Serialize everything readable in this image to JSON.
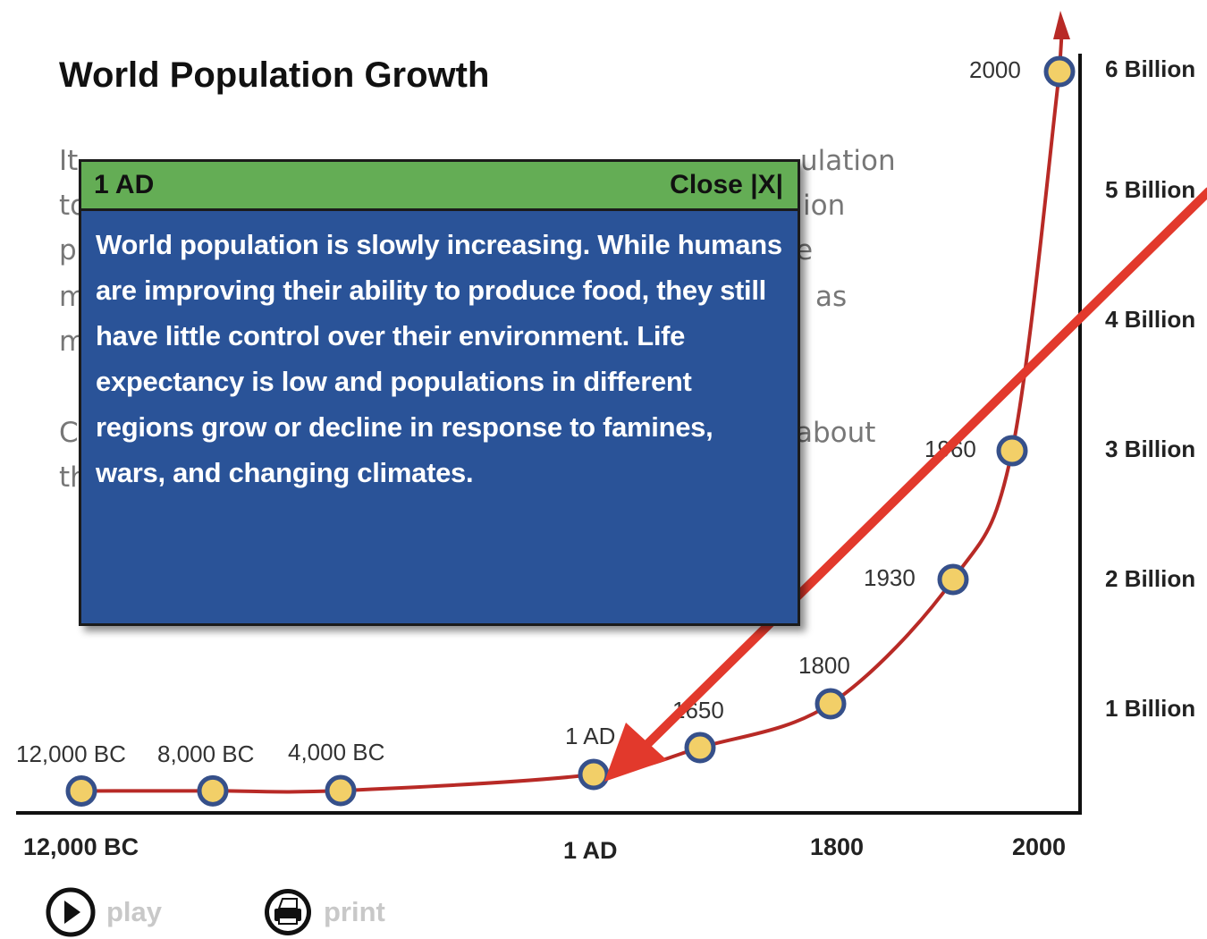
{
  "page": {
    "title": "World Population Growth",
    "intro_fragments": [
      "It",
      "ulation",
      "to",
      "ion",
      "p",
      "e",
      "m",
      "as",
      "m",
      "C",
      "about",
      "th"
    ]
  },
  "popup": {
    "title": "1 AD",
    "close_label": "Close |X|",
    "body": "World population is slowly increasing.  While humans are improving their ability to produce food, they still have little control over their environment.  Life expectancy is low and populations in different regions grow or decline in response to famines, wars, and changing climates."
  },
  "controls": {
    "play_label": "play",
    "print_label": "print"
  },
  "colors": {
    "curve": "#b82a26",
    "marker_fill": "#f2cf68",
    "marker_stroke": "#36508a",
    "arrow": "#e2392c",
    "popup_header": "#64ad55",
    "popup_body": "#2a5398"
  },
  "chart_data": {
    "type": "line",
    "points": [
      {
        "label": "12,000 BC",
        "year": -12000,
        "population_billion": 0.004
      },
      {
        "label": "8,000 BC",
        "year": -8000,
        "population_billion": 0.005
      },
      {
        "label": "4,000 BC",
        "year": -4000,
        "population_billion": 0.007
      },
      {
        "label": "1 AD",
        "year": 1,
        "population_billion": 0.2
      },
      {
        "label": "1650",
        "year": 1650,
        "population_billion": 0.5
      },
      {
        "label": "1800",
        "year": 1800,
        "population_billion": 1.0
      },
      {
        "label": "1930",
        "year": 1930,
        "population_billion": 2.0
      },
      {
        "label": "1960",
        "year": 1960,
        "population_billion": 3.0
      },
      {
        "label": "2000",
        "year": 2000,
        "population_billion": 6.0
      }
    ],
    "x_tick_labels": [
      "12,000 BC",
      "1 AD",
      "1800",
      "2000"
    ],
    "y_tick_labels": [
      "1 Billion",
      "2 Billion",
      "3 Billion",
      "4 Billion",
      "5 Billion",
      "6 Billion"
    ],
    "y_range_billion": [
      0,
      6
    ],
    "highlighted_point": "1 AD"
  }
}
